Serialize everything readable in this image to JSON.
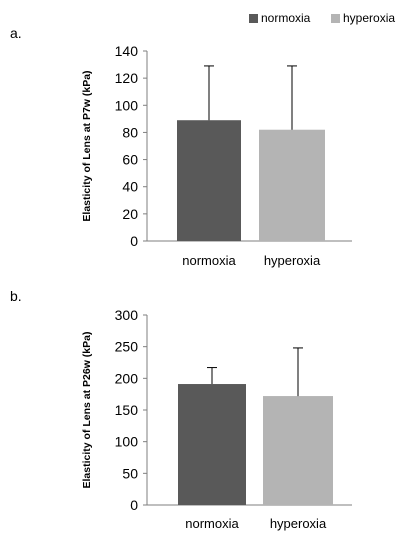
{
  "legend": {
    "items": [
      {
        "label": "normoxia",
        "color": "#595959"
      },
      {
        "label": "hyperoxia",
        "color": "#b4b4b4"
      }
    ]
  },
  "chart_data": [
    {
      "panel": "a.",
      "type": "bar",
      "categories": [
        "normoxia",
        "hyperoxia"
      ],
      "values": [
        89,
        82
      ],
      "error_plus": [
        40,
        47
      ],
      "ylabel": "Elasticity of Lens at P7w (kPa)",
      "ylim": [
        0,
        140
      ],
      "yticks": [
        0,
        20,
        40,
        60,
        80,
        100,
        120,
        140
      ],
      "grid": false,
      "colors": [
        "#595959",
        "#b4b4b4"
      ],
      "legend": "top-right"
    },
    {
      "panel": "b.",
      "type": "bar",
      "categories": [
        "normoxia",
        "hyperoxia"
      ],
      "values": [
        191,
        172
      ],
      "error_plus": [
        26,
        76
      ],
      "ylabel": "Elasticity of  Lens at P26w (kPa)",
      "ylim": [
        0,
        300
      ],
      "yticks": [
        0,
        50,
        100,
        150,
        200,
        250,
        300
      ],
      "grid": false,
      "colors": [
        "#595959",
        "#b4b4b4"
      ]
    }
  ]
}
